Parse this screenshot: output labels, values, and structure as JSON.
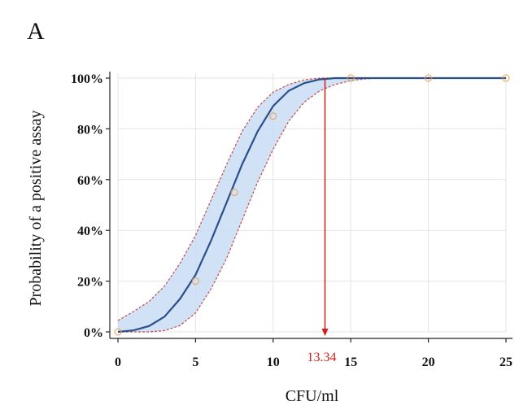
{
  "panel_label": "A",
  "chart_data": {
    "type": "line",
    "title": "",
    "xlabel": "CFU/ml",
    "ylabel": "Probability of a positive assay",
    "xlim": [
      0,
      25
    ],
    "ylim": [
      0,
      100
    ],
    "x_ticks": [
      0,
      5,
      10,
      15,
      20,
      25
    ],
    "x_tick_labels": [
      "0",
      "5",
      "10",
      "15",
      "20",
      "25"
    ],
    "y_ticks": [
      0,
      20,
      40,
      60,
      80,
      100
    ],
    "y_tick_labels": [
      "0%",
      "20%",
      "40%",
      "60%",
      "80%",
      "100%"
    ],
    "grid": true,
    "series": [
      {
        "role": "fit",
        "color": "#2b4f8a",
        "x": [
          0,
          1,
          2,
          3,
          4,
          5,
          6,
          7,
          8,
          9,
          10,
          11,
          12,
          13,
          14,
          15,
          16,
          17,
          18,
          20,
          22,
          25
        ],
        "y": [
          0,
          0.6,
          2.3,
          6,
          13,
          22.5,
          36,
          51,
          66,
          79,
          89,
          95,
          98,
          99.5,
          100,
          100,
          100,
          100,
          100,
          100,
          100,
          100
        ]
      },
      {
        "role": "ci_upper",
        "color": "#c0504d",
        "x": [
          0,
          1,
          2,
          3,
          4,
          5,
          6,
          7,
          8,
          9,
          10,
          11,
          12,
          13,
          14,
          15,
          16,
          18,
          20,
          25
        ],
        "y": [
          4.5,
          8,
          12,
          18,
          27,
          38,
          52,
          66,
          79,
          88.5,
          94.5,
          97.5,
          99.3,
          100,
          100,
          100,
          100,
          100,
          100,
          100
        ]
      },
      {
        "role": "ci_lower",
        "color": "#c0504d",
        "x": [
          0,
          1,
          2,
          3,
          4,
          5,
          6,
          7,
          8,
          9,
          10,
          11,
          12,
          13,
          14,
          15,
          16,
          17,
          18,
          20,
          25
        ],
        "y": [
          0,
          0,
          0,
          0.5,
          2.5,
          7.5,
          17,
          29,
          44,
          59,
          72,
          83,
          90.5,
          95,
          97.5,
          99,
          99.7,
          100,
          100,
          100,
          100
        ]
      }
    ],
    "observed_points": {
      "color": "#f0a050",
      "x": [
        0,
        5,
        7.5,
        10,
        15,
        20,
        25
      ],
      "y": [
        0,
        20,
        55,
        85,
        100,
        100,
        100
      ]
    },
    "annotation": {
      "x": 13.34,
      "label": "13.34",
      "color": "#cc1f1f"
    },
    "band_color": "#c9dcf4"
  }
}
